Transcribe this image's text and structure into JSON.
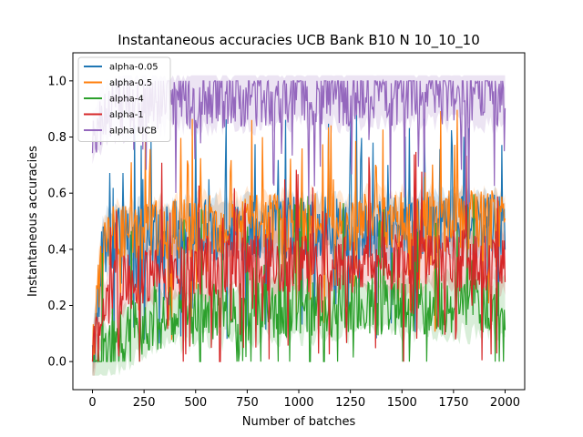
{
  "chart_data": {
    "type": "line",
    "title": "Instantaneous accuracies UCB Bank B10 N 10_10_10",
    "xlabel": "Number of batches",
    "ylabel": "Instantaneous accuracies",
    "xlim": [
      -95,
      2095
    ],
    "ylim": [
      -0.1,
      1.1
    ],
    "x_ticks": [
      0,
      250,
      500,
      750,
      1000,
      1250,
      1500,
      1750,
      2000
    ],
    "y_ticks": [
      0.0,
      0.2,
      0.4,
      0.6,
      0.8,
      1.0
    ],
    "x_tick_labels": [
      "0",
      "250",
      "500",
      "750",
      "1000",
      "1250",
      "1500",
      "1750",
      "2000"
    ],
    "y_tick_labels": [
      "0.0",
      "0.2",
      "0.4",
      "0.6",
      "0.8",
      "1.0"
    ],
    "grid": false,
    "legend_position": "top-left",
    "series": [
      {
        "name": "alpha-0.05",
        "color": "#1f77b4",
        "x": [
          0,
          50,
          100,
          200,
          300,
          500,
          750,
          1000,
          1250,
          1500,
          1750,
          2000
        ],
        "y": [
          0.0,
          0.42,
          0.44,
          0.45,
          0.46,
          0.47,
          0.47,
          0.48,
          0.48,
          0.48,
          0.49,
          0.49
        ]
      },
      {
        "name": "alpha-0.5",
        "color": "#ff7f0e",
        "x": [
          0,
          50,
          100,
          200,
          300,
          500,
          750,
          1000,
          1250,
          1500,
          1750,
          2000
        ],
        "y": [
          0.0,
          0.43,
          0.45,
          0.46,
          0.47,
          0.48,
          0.49,
          0.49,
          0.5,
          0.5,
          0.5,
          0.5
        ]
      },
      {
        "name": "alpha-4",
        "color": "#2ca02c",
        "x": [
          0,
          50,
          100,
          200,
          300,
          500,
          750,
          1000,
          1250,
          1500,
          1750,
          2000
        ],
        "y": [
          0.0,
          0.02,
          0.05,
          0.12,
          0.15,
          0.17,
          0.18,
          0.19,
          0.2,
          0.2,
          0.2,
          0.2
        ]
      },
      {
        "name": "alpha-1",
        "color": "#d62728",
        "x": [
          0,
          50,
          100,
          200,
          300,
          500,
          750,
          1000,
          1250,
          1500,
          1750,
          2000
        ],
        "y": [
          0.0,
          0.2,
          0.25,
          0.3,
          0.32,
          0.34,
          0.35,
          0.35,
          0.35,
          0.36,
          0.36,
          0.36
        ]
      },
      {
        "name": "alpha UCB",
        "color": "#9467bd",
        "x": [
          0,
          50,
          100,
          200,
          300,
          500,
          750,
          1000,
          1250,
          1500,
          1750,
          2000
        ],
        "y": [
          0.8,
          0.88,
          0.9,
          0.92,
          0.93,
          0.94,
          0.94,
          0.95,
          0.95,
          0.95,
          0.95,
          0.95
        ]
      }
    ]
  }
}
